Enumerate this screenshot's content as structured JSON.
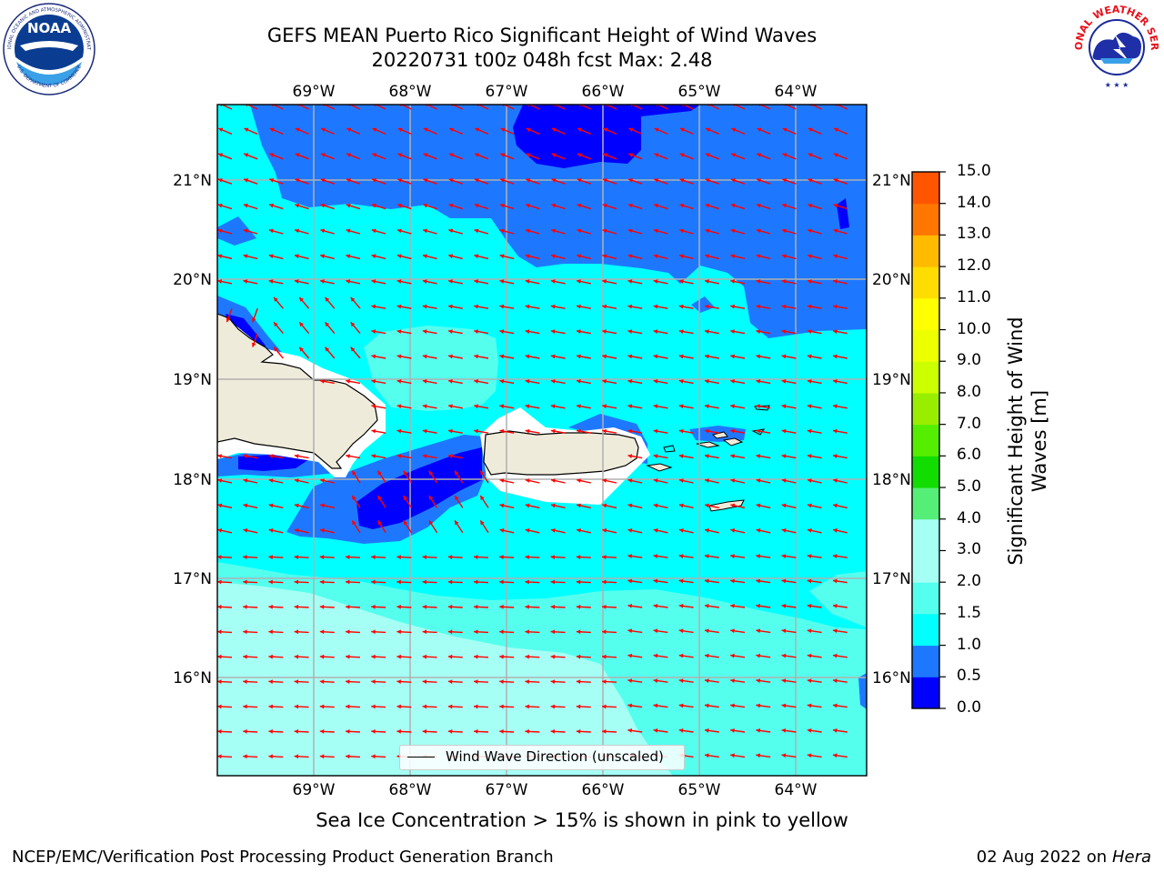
{
  "title": {
    "line1": "GEFS MEAN Puerto Rico Significant Height of Wind Waves",
    "line2": "20220731 t00z 048h fcst   Max: 2.48"
  },
  "map": {
    "lon_labels": [
      "69°W",
      "68°W",
      "67°W",
      "66°W",
      "65°W",
      "64°W"
    ],
    "lat_labels": [
      "21°N",
      "20°N",
      "19°N",
      "18°N",
      "17°N",
      "16°N"
    ],
    "colors": {
      "band_0_0p5": "#0000ff",
      "band_0p5_1": "#1e78ff",
      "band_1_1p5": "#00ffff",
      "band_1p5_2": "#55ffee",
      "band_2_3": "#a6fff5",
      "land": "#efebdb",
      "arrow": "#ff0000",
      "grid": "#b0b0b0"
    },
    "arrow_symbol": "wind-wave-direction-arrow"
  },
  "legend": {
    "label": "Wind Wave Direction (unscaled)"
  },
  "colorbar": {
    "title": "Significant Height of Wind Waves [m]",
    "ticks": [
      "15.0",
      "14.0",
      "13.0",
      "12.0",
      "11.0",
      "10.0",
      "9.0",
      "8.0",
      "7.0",
      "6.0",
      "5.0",
      "4.0",
      "3.0",
      "2.0",
      "1.5",
      "1.0",
      "0.5",
      "0.0"
    ],
    "colors": [
      "#0000ff",
      "#1e78ff",
      "#00ffff",
      "#55ffee",
      "#a6fff5",
      "#55ee77",
      "#11dd00",
      "#55ee00",
      "#99ee00",
      "#ccff00",
      "#eeff00",
      "#ffff00",
      "#ffdd00",
      "#ffbb00",
      "#ff9900",
      "#ff7700",
      "#ff5500",
      "#ff2200",
      "#ff0000"
    ]
  },
  "footnote": "Sea Ice Concentration > 15% is shown in pink to yellow",
  "credit": {
    "left": "NCEP/EMC/Verification Post Processing Product Generation Branch",
    "right_date": "02 Aug 2022 on",
    "right_host": "Hera"
  },
  "logos": {
    "noaa_text": "NOAA",
    "noaa_ring_top": "NATIONAL OCEANIC AND ATMOSPHERIC ADMINISTRATION",
    "noaa_ring_bottom": "U.S. DEPARTMENT OF COMMERCE",
    "nws_ring": "NATIONAL WEATHER SERVICE"
  }
}
